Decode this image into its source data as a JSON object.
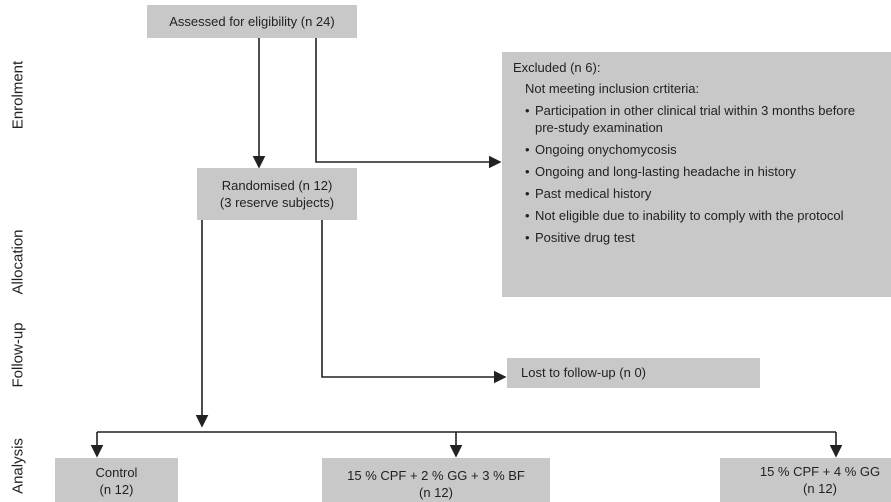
{
  "stages": [
    "Enrolment",
    "Allocation",
    "Follow-up",
    "Analysis"
  ],
  "assessed": "Assessed for eligibility (n 24)",
  "excluded": {
    "title": "Excluded (n 6):",
    "subtitle": "Not meeting inclusion crtiteria:",
    "items": [
      "Participation in other clinical trial within 3 months before pre-study examination",
      "Ongoing onychomycosis",
      "Ongoing and long-lasting headache in history",
      "Past medical history",
      "Not eligible due to inability to comply with the protocol",
      "Positive drug test"
    ]
  },
  "randomised": [
    "Randomised (n 12)",
    "(3 reserve subjects)"
  ],
  "lost": "Lost to follow-up (n 0)",
  "groups": [
    [
      "Control",
      "(n 12)"
    ],
    [
      "15 % CPF + 2 % GG + 3 % BF",
      "(n 12)"
    ],
    [
      "15 % CPF + 4 % GG",
      "(n 12)"
    ]
  ]
}
